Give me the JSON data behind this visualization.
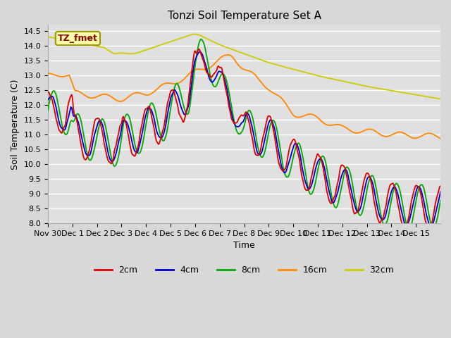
{
  "title": "Tonzi Soil Temperature Set A",
  "xlabel": "Time",
  "ylabel": "Soil Temperature (C)",
  "ylim": [
    8.0,
    14.7
  ],
  "yticks": [
    8.0,
    8.5,
    9.0,
    9.5,
    10.0,
    10.5,
    11.0,
    11.5,
    12.0,
    12.5,
    13.0,
    13.5,
    14.0,
    14.5
  ],
  "colors": {
    "2cm": "#dd0000",
    "4cm": "#0000cc",
    "8cm": "#00aa00",
    "16cm": "#ff8800",
    "32cm": "#cccc00"
  },
  "legend_label": "TZ_fmet",
  "bg_color": "#d8d8d8",
  "n_points": 480,
  "x_start": -1,
  "x_end": 15,
  "xtick_positions": [
    -1,
    0,
    1,
    2,
    3,
    4,
    5,
    6,
    7,
    8,
    9,
    10,
    11,
    12,
    13,
    14,
    15
  ],
  "xtick_labels": [
    "Nov 30",
    "Dec 1",
    "Dec 2",
    "Dec 3",
    "Dec 4",
    "Dec 5",
    "Dec 6",
    "Dec 7",
    "Dec 8",
    "Dec 9",
    "Dec 10",
    "Dec 11",
    "Dec 12",
    "Dec 13",
    "Dec 14",
    "Dec 15",
    ""
  ]
}
